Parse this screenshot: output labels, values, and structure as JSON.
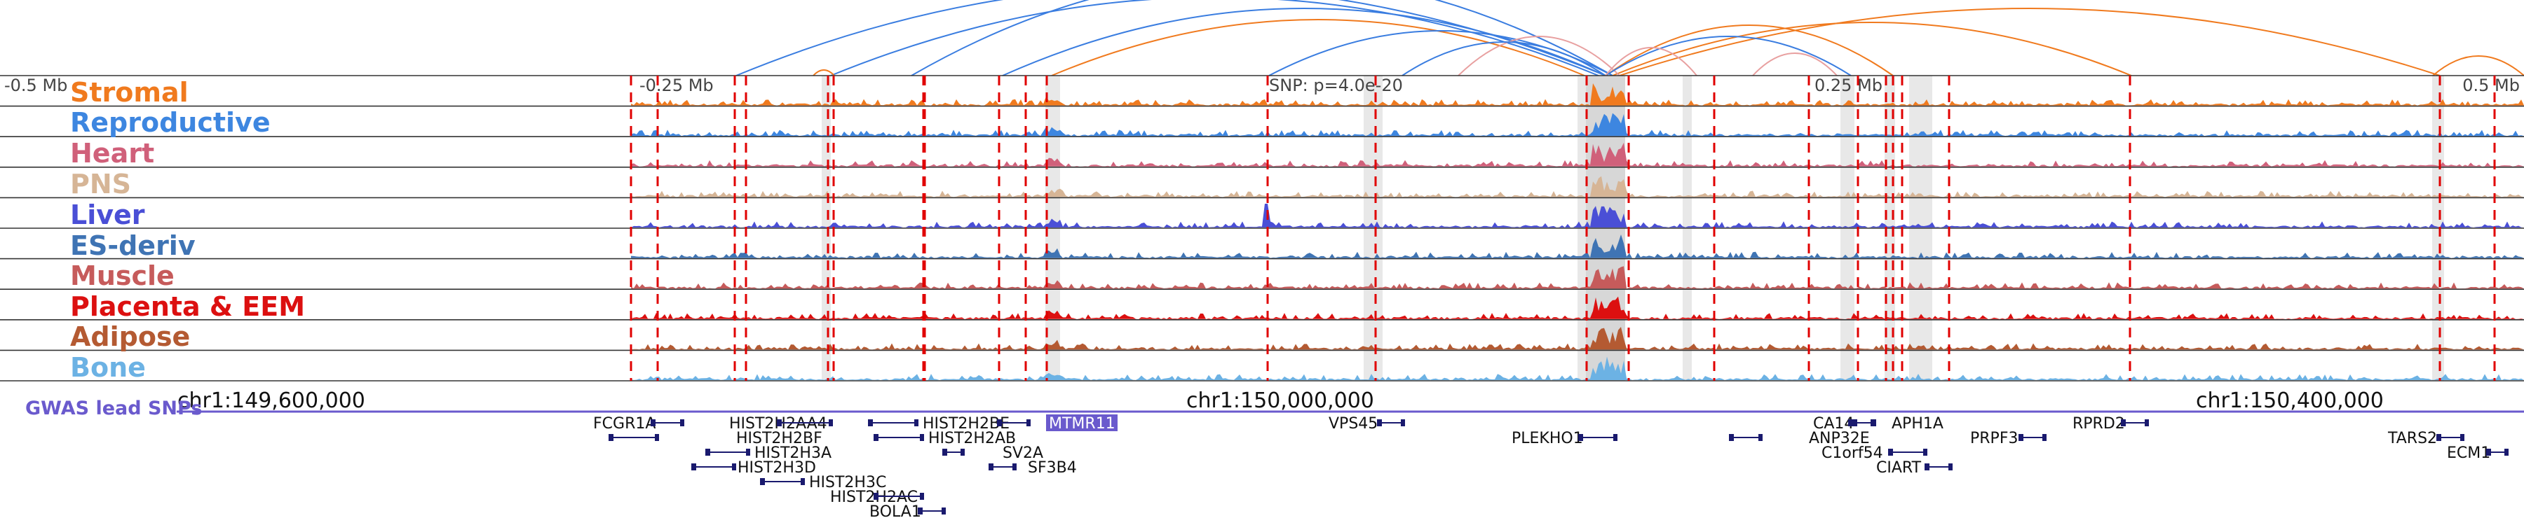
{
  "axis_top": {
    "left_label": "-0.5 Mb",
    "q1_label": "-0.25 Mb",
    "snp_label": "SNP: p=4.0e-20",
    "q3_label": "0.25 Mb",
    "right_label": "0.5 Mb"
  },
  "tracks": [
    {
      "label": "Stromal",
      "color": "#f07a1e"
    },
    {
      "label": "Reproductive",
      "color": "#3d86e0"
    },
    {
      "label": "Heart",
      "color": "#d0607a"
    },
    {
      "label": "PNS",
      "color": "#d6b596"
    },
    {
      "label": "Liver",
      "color": "#4a4fd6"
    },
    {
      "label": "ES-deriv",
      "color": "#3f74b4"
    },
    {
      "label": "Muscle",
      "color": "#c65b5b"
    },
    {
      "label": "Placenta & EEM",
      "color": "#dc1010"
    },
    {
      "label": "Adipose",
      "color": "#b45a32"
    },
    {
      "label": "Bone",
      "color": "#6cb2e4"
    }
  ],
  "genome_axis": {
    "tick1": "chr1:149,600,000",
    "tick2": "chr1:150,000,000",
    "tick3": "chr1:150,400,000"
  },
  "gwas_label": "GWAS lead SNPs",
  "genes": [
    {
      "name": "FCGR1A"
    },
    {
      "name": "HIST2H2AA4"
    },
    {
      "name": "HIST2H2BF"
    },
    {
      "name": "HIST2H3A"
    },
    {
      "name": "HIST2H3D"
    },
    {
      "name": "HIST2H3C"
    },
    {
      "name": "HIST2H2AC"
    },
    {
      "name": "BOLA1"
    },
    {
      "name": "HIST2H2BE"
    },
    {
      "name": "HIST2H2AB"
    },
    {
      "name": "SV2A"
    },
    {
      "name": "SF3B4"
    },
    {
      "name": "MTMR11",
      "highlight": true
    },
    {
      "name": "VPS45"
    },
    {
      "name": "PLEKHO1"
    },
    {
      "name": "CA14"
    },
    {
      "name": "APH1A"
    },
    {
      "name": "ANP32E"
    },
    {
      "name": "C1orf54"
    },
    {
      "name": "CIART"
    },
    {
      "name": "PRPF3"
    },
    {
      "name": "RPRD2"
    },
    {
      "name": "TARS2"
    },
    {
      "name": "ECM1"
    }
  ],
  "colors": {
    "arc_blue": "#3a7de0",
    "arc_orange": "#f07a1e",
    "marker_red": "#e00000",
    "gene_navy": "#1a1a6e",
    "gwas_purple": "#6a5acd",
    "highlight_gene_bg": "#6a5acd"
  }
}
